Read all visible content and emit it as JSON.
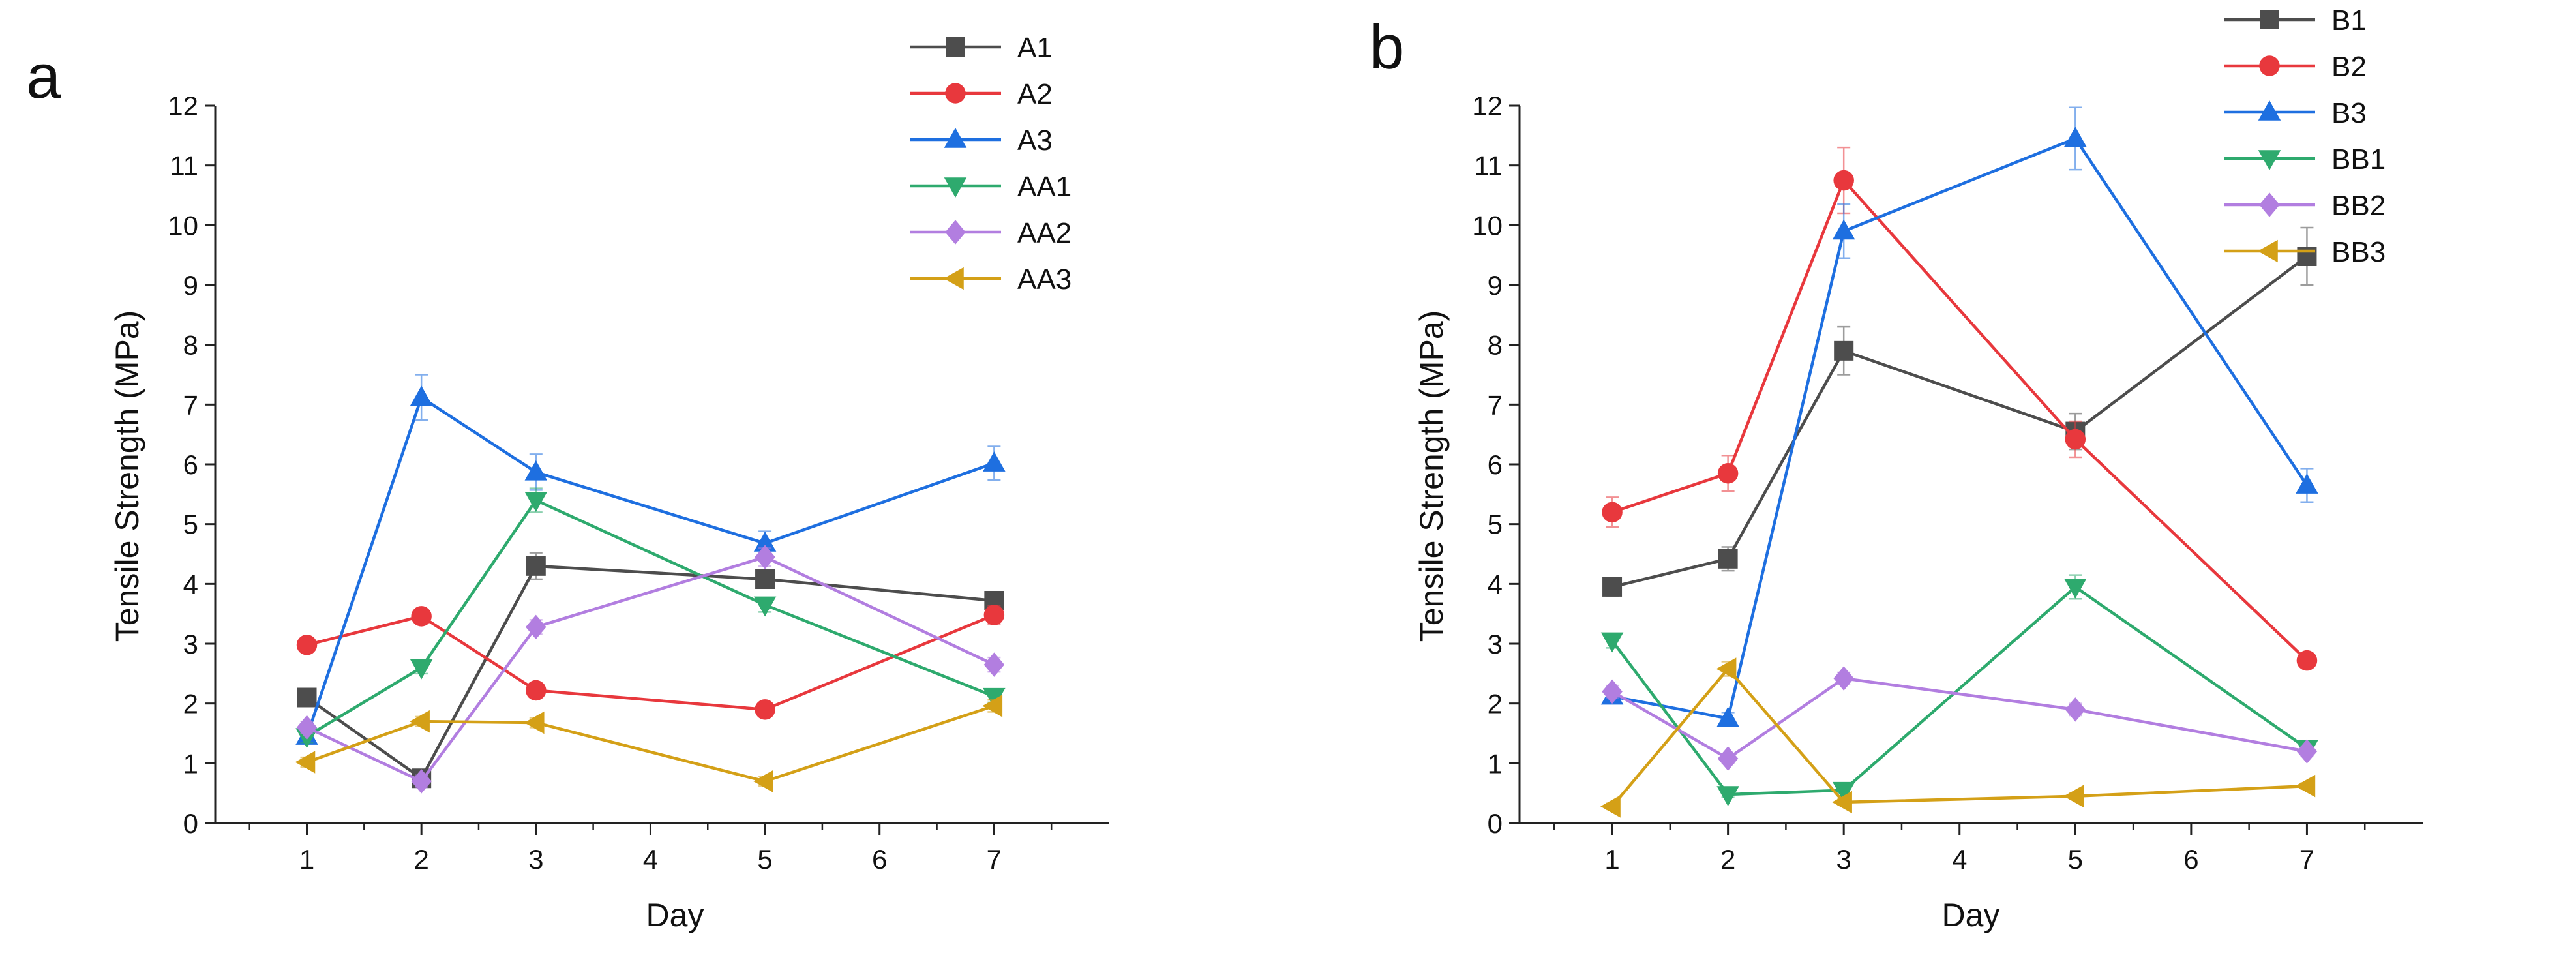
{
  "chart_data": [
    {
      "type": "line",
      "panel_label": "a",
      "title": "",
      "xlabel": "Day",
      "ylabel": "Tensile Strength (MPa)",
      "xlim": [
        0.2,
        8.0
      ],
      "ylim": [
        0,
        12
      ],
      "xticks": [
        1,
        2,
        3,
        4,
        5,
        6,
        7
      ],
      "yticks": [
        0,
        1,
        2,
        3,
        4,
        5,
        6,
        7,
        8,
        9,
        10,
        11,
        12
      ],
      "x": [
        1,
        2,
        3,
        5,
        7
      ],
      "legend_position": "top-right",
      "series": [
        {
          "name": "A1",
          "color": "#4d4d4d",
          "marker": "square",
          "values": [
            2.1,
            0.75,
            4.3,
            4.08,
            3.72
          ],
          "errors": [
            0.1,
            0.1,
            0.22,
            0.15,
            0.12
          ]
        },
        {
          "name": "A2",
          "color": "#e8383d",
          "marker": "circle",
          "values": [
            2.98,
            3.46,
            2.22,
            1.9,
            3.48
          ],
          "errors": [
            0.1,
            0.12,
            0.1,
            0.08,
            0.15
          ]
        },
        {
          "name": "A3",
          "color": "#1e6fe0",
          "marker": "triangle-up",
          "values": [
            1.45,
            7.12,
            5.87,
            4.68,
            6.02
          ],
          "errors": [
            0.1,
            0.38,
            0.3,
            0.2,
            0.28
          ]
        },
        {
          "name": "AA1",
          "color": "#2eaa6e",
          "marker": "triangle-down",
          "values": [
            1.45,
            2.6,
            5.4,
            3.65,
            2.12
          ],
          "errors": [
            0.1,
            0.1,
            0.2,
            0.12,
            0.1
          ]
        },
        {
          "name": "AA2",
          "color": "#b27ee0",
          "marker": "diamond",
          "values": [
            1.6,
            0.7,
            3.28,
            4.45,
            2.65
          ],
          "errors": [
            0.1,
            0.1,
            0.12,
            0.15,
            0.12
          ]
        },
        {
          "name": "AA3",
          "color": "#d4a017",
          "marker": "triangle-left",
          "values": [
            1.02,
            1.7,
            1.68,
            0.7,
            1.96
          ],
          "errors": [
            0.08,
            0.08,
            0.08,
            0.08,
            0.1
          ]
        }
      ]
    },
    {
      "type": "line",
      "panel_label": "b",
      "title": "",
      "xlabel": "Day",
      "ylabel": "Tensile Strength (MPa)",
      "xlim": [
        0.2,
        8.0
      ],
      "ylim": [
        0,
        12
      ],
      "xticks": [
        1,
        2,
        3,
        4,
        5,
        6,
        7
      ],
      "yticks": [
        0,
        1,
        2,
        3,
        4,
        5,
        6,
        7,
        8,
        9,
        10,
        11,
        12
      ],
      "x": [
        1,
        2,
        3,
        5,
        7
      ],
      "legend_position": "top-right",
      "series": [
        {
          "name": "B1",
          "color": "#4d4d4d",
          "marker": "square",
          "values": [
            3.95,
            4.42,
            7.9,
            6.55,
            9.48
          ],
          "errors": [
            0.15,
            0.2,
            0.4,
            0.3,
            0.48
          ]
        },
        {
          "name": "B2",
          "color": "#e8383d",
          "marker": "circle",
          "values": [
            5.2,
            5.85,
            10.75,
            6.42,
            2.72
          ],
          "errors": [
            0.25,
            0.3,
            0.55,
            0.3,
            0.12
          ]
        },
        {
          "name": "B3",
          "color": "#1e6fe0",
          "marker": "triangle-up",
          "values": [
            2.12,
            1.75,
            9.9,
            11.45,
            5.65
          ],
          "errors": [
            0.12,
            0.1,
            0.45,
            0.52,
            0.28
          ]
        },
        {
          "name": "BB1",
          "color": "#2eaa6e",
          "marker": "triangle-down",
          "values": [
            3.05,
            0.48,
            0.55,
            3.95,
            1.25
          ],
          "errors": [
            0.12,
            0.05,
            0.05,
            0.2,
            0.1
          ]
        },
        {
          "name": "BB2",
          "color": "#b27ee0",
          "marker": "diamond",
          "values": [
            2.2,
            1.08,
            2.42,
            1.9,
            1.2
          ],
          "errors": [
            0.1,
            0.08,
            0.1,
            0.1,
            0.08
          ]
        },
        {
          "name": "BB3",
          "color": "#d4a017",
          "marker": "triangle-left",
          "values": [
            0.28,
            2.58,
            0.35,
            0.45,
            0.62
          ],
          "errors": [
            0.05,
            0.12,
            0.05,
            0.05,
            0.05
          ]
        }
      ]
    }
  ]
}
